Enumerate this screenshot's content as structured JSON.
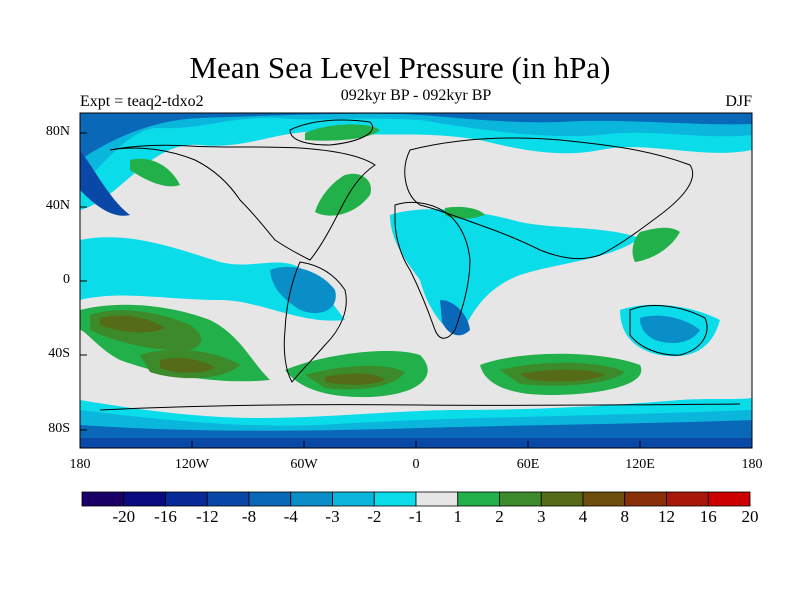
{
  "title": "Mean Sea Level Pressure (in hPa)",
  "subtitle": "092kyr BP - 092kyr BP",
  "left_label": "Expt = teaq2-tdxo2",
  "right_label": "DJF",
  "lat_labels": [
    "80N",
    "40N",
    "0",
    "40S",
    "80S"
  ],
  "lon_labels": [
    "180",
    "120W",
    "60W",
    "0",
    "60E",
    "120E",
    "180"
  ],
  "colorbar": {
    "labels": [
      "-20",
      "-16",
      "-12",
      "-8",
      "-4",
      "-3",
      "-2",
      "-1",
      "1",
      "2",
      "3",
      "4",
      "8",
      "12",
      "16",
      "20"
    ],
    "colors": [
      "#1a0066",
      "#0a0a80",
      "#082a96",
      "#0a48a8",
      "#0a68b8",
      "#0a8ec8",
      "#0ab6dc",
      "#0adcea",
      "#e6e6e6",
      "#22b04a",
      "#3c8a2a",
      "#556b18",
      "#6e4e0c",
      "#8a3008",
      "#a81808",
      "#cc0000"
    ]
  },
  "colors": {
    "ocean_low": "#0a48a8",
    "mid_low": "#0a8ec8",
    "light_low": "#0adcea",
    "neutral": "#e6e6e6",
    "pos1": "#22b04a",
    "pos2": "#3c8a2a",
    "pos3": "#556b18",
    "pos4": "#6e4e0c"
  }
}
